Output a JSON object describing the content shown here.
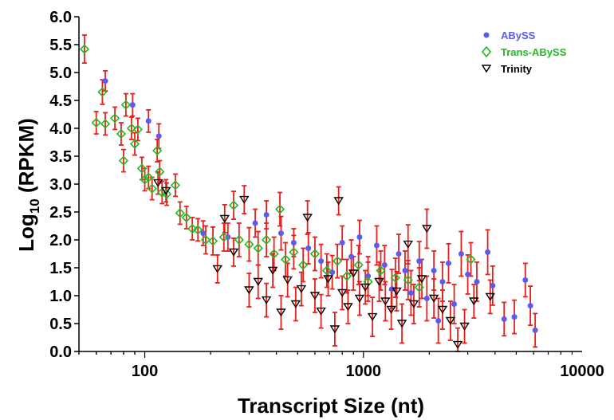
{
  "chart_data": {
    "type": "scatter",
    "title": "",
    "xlabel": "Transcript Size (nt)",
    "ylabel": {
      "main": "Log",
      "sub": "10",
      "rest": " (RPKM)"
    },
    "x_scale": "log",
    "xlim": [
      50,
      10000
    ],
    "ylim": [
      0,
      6
    ],
    "x_ticks": [
      {
        "value": 100,
        "label": "100"
      },
      {
        "value": 1000,
        "label": "1000"
      },
      {
        "value": 10000,
        "label": "10000"
      }
    ],
    "y_ticks": [
      {
        "value": 0.0,
        "label": "0.0"
      },
      {
        "value": 0.5,
        "label": "0.5"
      },
      {
        "value": 1.0,
        "label": "1.0"
      },
      {
        "value": 1.5,
        "label": "1.5"
      },
      {
        "value": 2.0,
        "label": "2.0"
      },
      {
        "value": 2.5,
        "label": "2.5"
      },
      {
        "value": 3.0,
        "label": "3.0"
      },
      {
        "value": 3.5,
        "label": "3.5"
      },
      {
        "value": 4.0,
        "label": "4.0"
      },
      {
        "value": 4.5,
        "label": "4.5"
      },
      {
        "value": 5.0,
        "label": "5.0"
      },
      {
        "value": 5.5,
        "label": "5.5"
      },
      {
        "value": 6.0,
        "label": "6.0"
      }
    ],
    "error_bar_color": "#e8201c",
    "legend_position": "top-right",
    "series": [
      {
        "name": "ABySS",
        "marker": "filled-circle",
        "color": "#5b5bf0",
        "points": [
          [
            66,
            4.85,
            0.18
          ],
          [
            88,
            4.42,
            0.2
          ],
          [
            104,
            4.13,
            0.2
          ],
          [
            116,
            3.86,
            0.22
          ],
          [
            185,
            2.12,
            0.22
          ],
          [
            240,
            2.05,
            0.25
          ],
          [
            320,
            2.3,
            0.25
          ],
          [
            360,
            2.45,
            0.25
          ],
          [
            420,
            2.12,
            0.3
          ],
          [
            480,
            1.95,
            0.25
          ],
          [
            560,
            1.85,
            0.28
          ],
          [
            640,
            1.62,
            0.3
          ],
          [
            720,
            1.42,
            0.3
          ],
          [
            800,
            1.95,
            0.3
          ],
          [
            880,
            1.7,
            0.3
          ],
          [
            960,
            2.05,
            0.3
          ],
          [
            1050,
            1.35,
            0.35
          ],
          [
            1150,
            1.9,
            0.35
          ],
          [
            1250,
            1.55,
            0.35
          ],
          [
            1350,
            1.12,
            0.35
          ],
          [
            1450,
            1.75,
            0.35
          ],
          [
            1550,
            1.45,
            0.35
          ],
          [
            1650,
            1.05,
            0.4
          ],
          [
            1800,
            1.62,
            0.35
          ],
          [
            1950,
            0.95,
            0.4
          ],
          [
            2100,
            1.45,
            0.35
          ],
          [
            2200,
            0.55,
            0.4
          ],
          [
            2300,
            1.25,
            0.35
          ],
          [
            2450,
            1.58,
            0.35
          ],
          [
            2600,
            0.85,
            0.35
          ],
          [
            2800,
            1.75,
            0.4
          ],
          [
            3000,
            1.38,
            0.35
          ],
          [
            3300,
            1.25,
            0.35
          ],
          [
            3700,
            1.78,
            0.4
          ],
          [
            3900,
            1.18,
            0.35
          ],
          [
            4400,
            0.58,
            0.3
          ],
          [
            4900,
            0.62,
            0.3
          ],
          [
            5500,
            1.28,
            0.3
          ],
          [
            5800,
            0.82,
            0.35
          ],
          [
            6100,
            0.38,
            0.3
          ]
        ]
      },
      {
        "name": "Trans-ABySS",
        "marker": "open-diamond",
        "color": "#22bb22",
        "points": [
          [
            53,
            5.42,
            0.25
          ],
          [
            60,
            4.1,
            0.2
          ],
          [
            64,
            4.65,
            0.22
          ],
          [
            66,
            4.08,
            0.2
          ],
          [
            73,
            4.18,
            0.2
          ],
          [
            78,
            3.9,
            0.2
          ],
          [
            80,
            3.42,
            0.2
          ],
          [
            82,
            4.42,
            0.2
          ],
          [
            87,
            4.0,
            0.2
          ],
          [
            90,
            3.72,
            0.2
          ],
          [
            93,
            3.98,
            0.2
          ],
          [
            97,
            3.28,
            0.2
          ],
          [
            100,
            3.08,
            0.2
          ],
          [
            104,
            3.12,
            0.2
          ],
          [
            108,
            2.92,
            0.2
          ],
          [
            114,
            3.6,
            0.2
          ],
          [
            117,
            3.22,
            0.2
          ],
          [
            120,
            2.85,
            0.2
          ],
          [
            126,
            2.82,
            0.2
          ],
          [
            138,
            2.98,
            0.2
          ],
          [
            145,
            2.48,
            0.2
          ],
          [
            155,
            2.4,
            0.2
          ],
          [
            165,
            2.2,
            0.2
          ],
          [
            175,
            2.18,
            0.2
          ],
          [
            190,
            2.0,
            0.25
          ],
          [
            205,
            1.98,
            0.25
          ],
          [
            230,
            2.05,
            0.25
          ],
          [
            255,
            2.62,
            0.25
          ],
          [
            270,
            2.0,
            0.3
          ],
          [
            300,
            1.92,
            0.3
          ],
          [
            330,
            1.85,
            0.3
          ],
          [
            360,
            2.0,
            0.3
          ],
          [
            390,
            1.75,
            0.3
          ],
          [
            415,
            2.55,
            0.3
          ],
          [
            440,
            1.65,
            0.3
          ],
          [
            480,
            1.78,
            0.3
          ],
          [
            530,
            1.55,
            0.3
          ],
          [
            600,
            1.75,
            0.3
          ],
          [
            680,
            1.45,
            0.3
          ],
          [
            760,
            1.62,
            0.3
          ],
          [
            840,
            1.35,
            0.3
          ],
          [
            950,
            1.55,
            0.35
          ],
          [
            1050,
            1.25,
            0.35
          ],
          [
            1200,
            1.45,
            0.35
          ],
          [
            1400,
            1.32,
            0.35
          ],
          [
            1600,
            1.28,
            0.35
          ],
          [
            1800,
            1.15,
            0.35
          ],
          [
            3100,
            1.65,
            0.3
          ]
        ]
      },
      {
        "name": "Trinity",
        "marker": "open-triangle-down",
        "color": "#000000",
        "points": [
          [
            115,
            3.02,
            0.2
          ],
          [
            125,
            2.88,
            0.2
          ],
          [
            215,
            1.48,
            0.25
          ],
          [
            232,
            2.38,
            0.25
          ],
          [
            255,
            1.78,
            0.25
          ],
          [
            285,
            2.72,
            0.25
          ],
          [
            300,
            1.1,
            0.3
          ],
          [
            330,
            1.25,
            0.3
          ],
          [
            360,
            0.92,
            0.3
          ],
          [
            385,
            1.45,
            0.3
          ],
          [
            420,
            0.7,
            0.3
          ],
          [
            450,
            1.28,
            0.3
          ],
          [
            490,
            0.85,
            0.3
          ],
          [
            520,
            1.12,
            0.3
          ],
          [
            555,
            2.4,
            0.3
          ],
          [
            600,
            1.0,
            0.3
          ],
          [
            640,
            0.72,
            0.3
          ],
          [
            690,
            1.3,
            0.3
          ],
          [
            740,
            0.4,
            0.3
          ],
          [
            770,
            2.7,
            0.25
          ],
          [
            800,
            1.05,
            0.3
          ],
          [
            850,
            0.8,
            0.3
          ],
          [
            900,
            1.4,
            0.3
          ],
          [
            960,
            0.95,
            0.3
          ],
          [
            1020,
            1.15,
            0.3
          ],
          [
            1100,
            0.62,
            0.35
          ],
          [
            1180,
            1.25,
            0.35
          ],
          [
            1260,
            0.9,
            0.35
          ],
          [
            1340,
            0.75,
            0.35
          ],
          [
            1420,
            1.08,
            0.35
          ],
          [
            1500,
            0.5,
            0.35
          ],
          [
            1600,
            1.92,
            0.35
          ],
          [
            1700,
            0.85,
            0.35
          ],
          [
            1850,
            1.3,
            0.35
          ],
          [
            1950,
            2.2,
            0.35
          ],
          [
            2100,
            0.95,
            0.35
          ],
          [
            2300,
            0.75,
            0.35
          ],
          [
            2500,
            0.55,
            0.35
          ],
          [
            2700,
            0.12,
            0.3
          ],
          [
            2900,
            0.45,
            0.3
          ],
          [
            3200,
            0.9,
            0.3
          ],
          [
            3800,
            0.98,
            0.3
          ]
        ]
      }
    ]
  }
}
